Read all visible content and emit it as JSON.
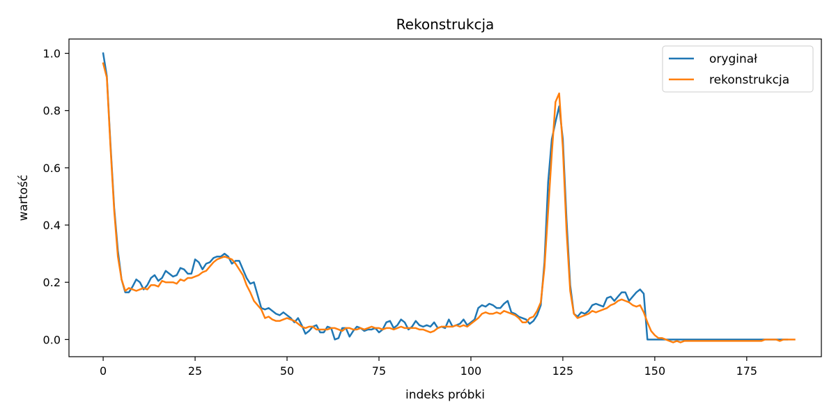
{
  "chart_data": {
    "type": "line",
    "title": "Rekonstrukcja",
    "xlabel": "indeks próbki",
    "ylabel": "wartość",
    "xlim": [
      -9.3,
      195.3
    ],
    "ylim": [
      -0.06,
      1.05
    ],
    "xticks": [
      0,
      25,
      50,
      75,
      100,
      125,
      150,
      175
    ],
    "yticks": [
      0.0,
      0.2,
      0.4,
      0.6,
      0.8,
      1.0
    ],
    "ytick_labels": [
      "0.0",
      "0.2",
      "0.4",
      "0.6",
      "0.8",
      "1.0"
    ],
    "grid": false,
    "legend_position": "top-right",
    "series": [
      {
        "name": "oryginał",
        "color": "#1f77b4",
        "values": [
          1.0,
          0.92,
          0.68,
          0.46,
          0.31,
          0.21,
          0.165,
          0.165,
          0.185,
          0.21,
          0.2,
          0.175,
          0.19,
          0.215,
          0.225,
          0.205,
          0.215,
          0.24,
          0.23,
          0.22,
          0.225,
          0.25,
          0.245,
          0.23,
          0.23,
          0.28,
          0.27,
          0.245,
          0.265,
          0.27,
          0.285,
          0.29,
          0.29,
          0.3,
          0.29,
          0.265,
          0.275,
          0.275,
          0.245,
          0.215,
          0.195,
          0.2,
          0.155,
          0.11,
          0.105,
          0.11,
          0.1,
          0.09,
          0.085,
          0.095,
          0.085,
          0.075,
          0.06,
          0.075,
          0.05,
          0.02,
          0.03,
          0.045,
          0.05,
          0.025,
          0.025,
          0.045,
          0.04,
          0.0,
          0.005,
          0.04,
          0.04,
          0.01,
          0.03,
          0.045,
          0.04,
          0.03,
          0.035,
          0.035,
          0.04,
          0.025,
          0.035,
          0.06,
          0.065,
          0.04,
          0.05,
          0.07,
          0.06,
          0.035,
          0.045,
          0.065,
          0.05,
          0.045,
          0.05,
          0.045,
          0.06,
          0.04,
          0.045,
          0.04,
          0.07,
          0.045,
          0.05,
          0.055,
          0.07,
          0.05,
          0.06,
          0.07,
          0.11,
          0.12,
          0.115,
          0.125,
          0.12,
          0.11,
          0.11,
          0.125,
          0.135,
          0.095,
          0.09,
          0.08,
          0.075,
          0.07,
          0.055,
          0.065,
          0.085,
          0.12,
          0.27,
          0.55,
          0.7,
          0.76,
          0.815,
          0.7,
          0.42,
          0.19,
          0.09,
          0.08,
          0.095,
          0.09,
          0.1,
          0.12,
          0.125,
          0.12,
          0.115,
          0.145,
          0.15,
          0.135,
          0.15,
          0.165,
          0.165,
          0.135,
          0.15,
          0.165,
          0.175,
          0.16,
          0.0,
          0.0,
          0.0,
          0.0,
          0.0,
          0.0,
          0.0,
          0.0,
          0.0,
          0.0,
          0.0,
          0.0,
          0.0,
          0.0,
          0.0,
          0.0,
          0.0,
          0.0,
          0.0,
          0.0,
          0.0,
          0.0,
          0.0,
          0.0,
          0.0,
          0.0,
          0.0,
          0.0,
          0.0,
          0.0,
          0.0,
          0.0,
          0.0,
          0.0,
          0.0,
          0.0,
          0.0,
          0.0,
          0.0
        ]
      },
      {
        "name": "rekonstrukcja",
        "color": "#ff7f0e",
        "values": [
          0.965,
          0.915,
          0.67,
          0.45,
          0.29,
          0.21,
          0.17,
          0.18,
          0.175,
          0.17,
          0.175,
          0.18,
          0.175,
          0.19,
          0.19,
          0.185,
          0.205,
          0.2,
          0.2,
          0.2,
          0.195,
          0.21,
          0.205,
          0.215,
          0.215,
          0.22,
          0.225,
          0.235,
          0.24,
          0.255,
          0.27,
          0.28,
          0.285,
          0.29,
          0.285,
          0.28,
          0.265,
          0.245,
          0.225,
          0.19,
          0.165,
          0.135,
          0.12,
          0.105,
          0.075,
          0.08,
          0.07,
          0.065,
          0.065,
          0.07,
          0.075,
          0.07,
          0.065,
          0.055,
          0.045,
          0.04,
          0.045,
          0.045,
          0.035,
          0.035,
          0.035,
          0.035,
          0.04,
          0.04,
          0.035,
          0.03,
          0.04,
          0.04,
          0.035,
          0.035,
          0.04,
          0.035,
          0.04,
          0.045,
          0.04,
          0.04,
          0.035,
          0.04,
          0.04,
          0.035,
          0.04,
          0.045,
          0.04,
          0.04,
          0.04,
          0.04,
          0.035,
          0.035,
          0.03,
          0.025,
          0.03,
          0.04,
          0.045,
          0.045,
          0.045,
          0.045,
          0.05,
          0.045,
          0.05,
          0.045,
          0.055,
          0.065,
          0.075,
          0.09,
          0.095,
          0.09,
          0.09,
          0.095,
          0.09,
          0.1,
          0.095,
          0.09,
          0.085,
          0.075,
          0.06,
          0.06,
          0.075,
          0.08,
          0.1,
          0.13,
          0.25,
          0.45,
          0.65,
          0.83,
          0.86,
          0.67,
          0.38,
          0.17,
          0.09,
          0.075,
          0.08,
          0.085,
          0.09,
          0.1,
          0.095,
          0.1,
          0.105,
          0.11,
          0.12,
          0.125,
          0.135,
          0.14,
          0.135,
          0.13,
          0.12,
          0.115,
          0.12,
          0.095,
          0.06,
          0.03,
          0.015,
          0.005,
          0.005,
          0.0,
          -0.005,
          -0.01,
          -0.005,
          -0.01,
          -0.005,
          -0.005,
          -0.005,
          -0.005,
          -0.005,
          -0.005,
          -0.005,
          -0.005,
          -0.005,
          -0.005,
          -0.005,
          -0.005,
          -0.005,
          -0.005,
          -0.005,
          -0.005,
          -0.005,
          -0.005,
          -0.005,
          -0.005,
          -0.005,
          -0.005,
          0.0,
          0.0,
          0.0,
          0.0,
          -0.005,
          0.0,
          0.0,
          0.0,
          0.0
        ]
      }
    ]
  }
}
